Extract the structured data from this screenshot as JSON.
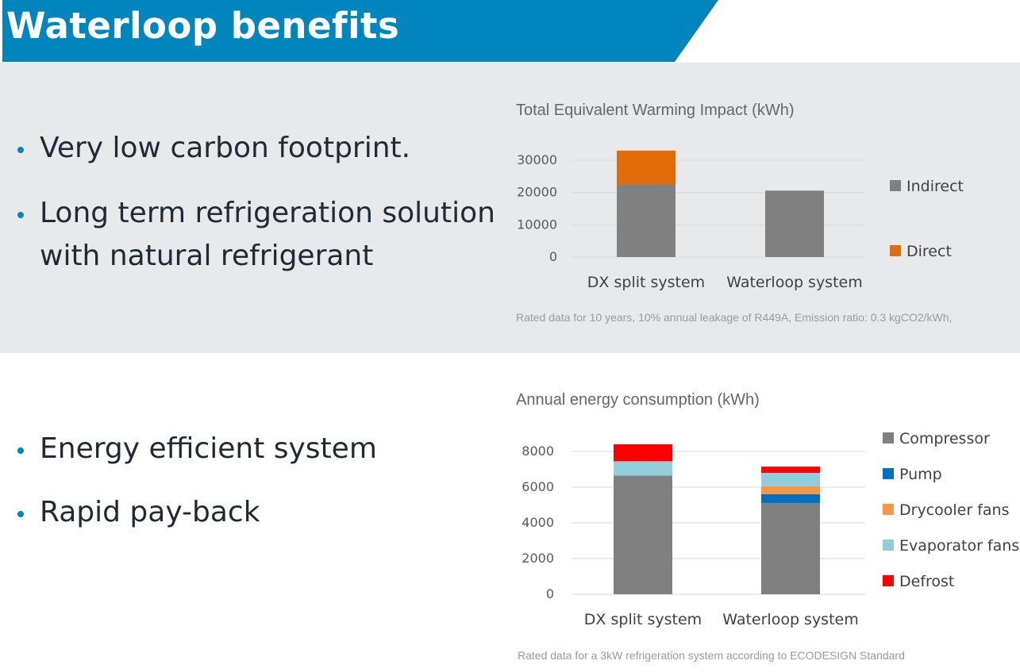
{
  "header": {
    "title": "Waterloop benefits"
  },
  "section1": {
    "bullets": [
      "Very low carbon footprint.",
      "Long term refrigeration solution",
      "with natural refrigerant"
    ],
    "footnote": "Rated data for 10 years, 10% annual leakage of R449A, Emission ratio: 0.3 kgCO2/kWh,"
  },
  "section2": {
    "bullets": [
      "Energy efficient system",
      "Rapid pay-back"
    ],
    "footnote": "Rated data for a 3kW refrigeration system according to ECODESIGN Standard"
  },
  "chart_data": [
    {
      "type": "bar",
      "stacked": true,
      "title": "Total Equivalent Warming Impact (kWh)",
      "categories": [
        "DX split system",
        "Waterloop system"
      ],
      "series": [
        {
          "name": "Indirect",
          "color": "#808080",
          "values": [
            22500,
            20600
          ]
        },
        {
          "name": "Direct",
          "color": "#e36c0a",
          "values": [
            10500,
            0
          ]
        }
      ],
      "ylim": [
        0,
        30000
      ],
      "yticks": [
        0,
        10000,
        20000,
        30000
      ],
      "grid": true,
      "legend": "right"
    },
    {
      "type": "bar",
      "stacked": true,
      "title": "Annual energy consumption (kWh)",
      "categories": [
        "DX split system",
        "Waterloop system"
      ],
      "series": [
        {
          "name": "Compressor",
          "color": "#808080",
          "values": [
            6650,
            5100
          ]
        },
        {
          "name": "Pump",
          "color": "#0070c0",
          "values": [
            0,
            500
          ]
        },
        {
          "name": "Drycooler fans",
          "color": "#f79646",
          "values": [
            0,
            450
          ]
        },
        {
          "name": "Evaporator fans",
          "color": "#92cddc",
          "values": [
            800,
            750
          ]
        },
        {
          "name": "Defrost",
          "color": "#ff0000",
          "values": [
            950,
            350
          ]
        }
      ],
      "ylim": [
        0,
        8000
      ],
      "yticks": [
        0,
        2000,
        4000,
        6000,
        8000
      ],
      "grid": true,
      "legend": "right"
    }
  ]
}
